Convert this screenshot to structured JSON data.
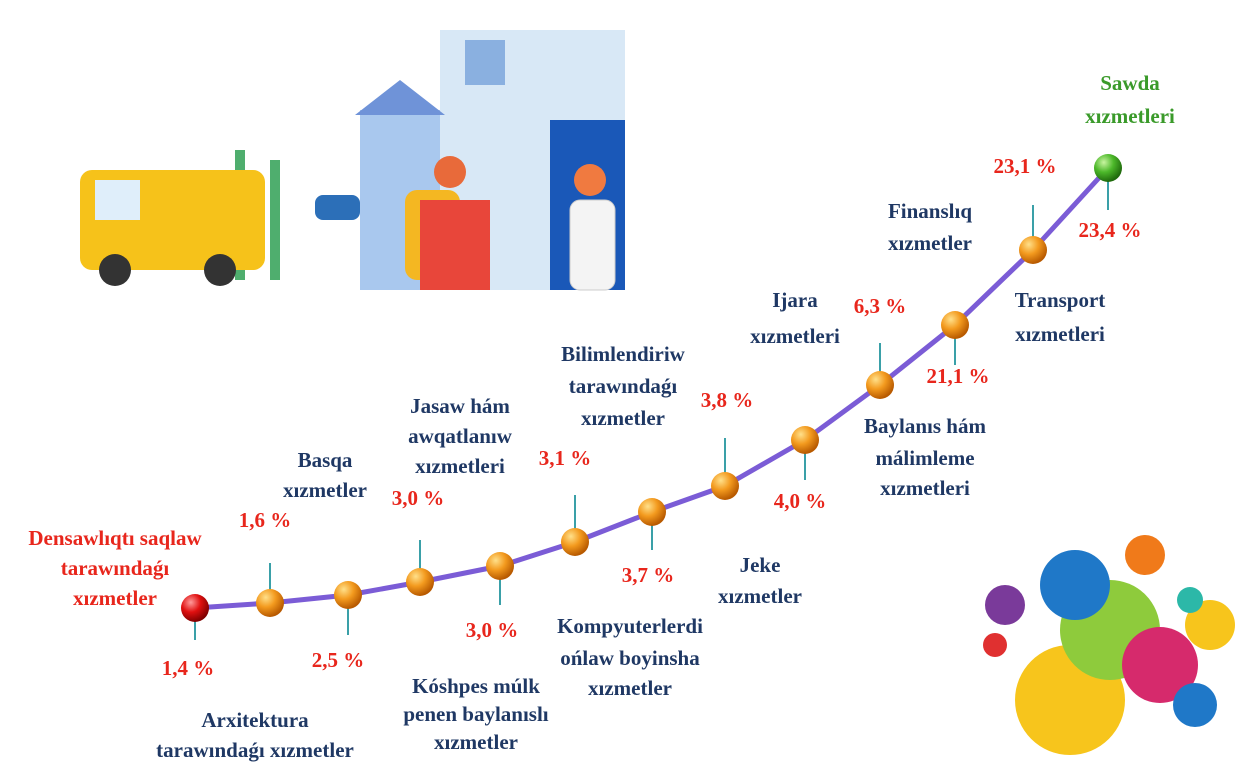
{
  "items": [
    {
      "label": [
        "Densawlıqtı saqlaw",
        "tarawındaǵı",
        "xızmetler"
      ],
      "value": "1,4 %"
    },
    {
      "label": [
        "Basqa",
        "xızmetler"
      ],
      "value": "1,6 %"
    },
    {
      "label": [
        "Arxitektura",
        "tarawındaǵı xızmetler"
      ],
      "value": "2,5 %"
    },
    {
      "label": [
        "Jasaw hám",
        "awqatlanıw",
        "xızmetleri"
      ],
      "value": "3,0 %"
    },
    {
      "label": [
        "Kóshpes múlk",
        "penen baylanıslı",
        "xızmetler"
      ],
      "value": "3,0 %"
    },
    {
      "label": [
        "Bilimlendiriw",
        "tarawındaǵı",
        "xızmetler"
      ],
      "value": "3,1 %"
    },
    {
      "label": [
        "Kompyuterlerdi",
        "ońlaw boyinsha",
        "xızmetler"
      ],
      "value": "3,7 %"
    },
    {
      "label": [
        "Jeke",
        "xızmetler"
      ],
      "value": "3,8 %"
    },
    {
      "label": [
        "Baylanıs hám",
        "málimleme",
        "xızmetleri"
      ],
      "value": "4,0 %"
    },
    {
      "label": [
        "Ijara",
        "xızmetleri"
      ],
      "value": "6,3 %"
    },
    {
      "label": [
        "Transport",
        "xızmetleri"
      ],
      "value": "21,1 %"
    },
    {
      "label": [
        "Finanslıq",
        "xızmetler"
      ],
      "value": "23,1 %"
    },
    {
      "label": [
        "Sawda",
        "xızmetleri"
      ],
      "value": "23,4 %"
    }
  ]
}
